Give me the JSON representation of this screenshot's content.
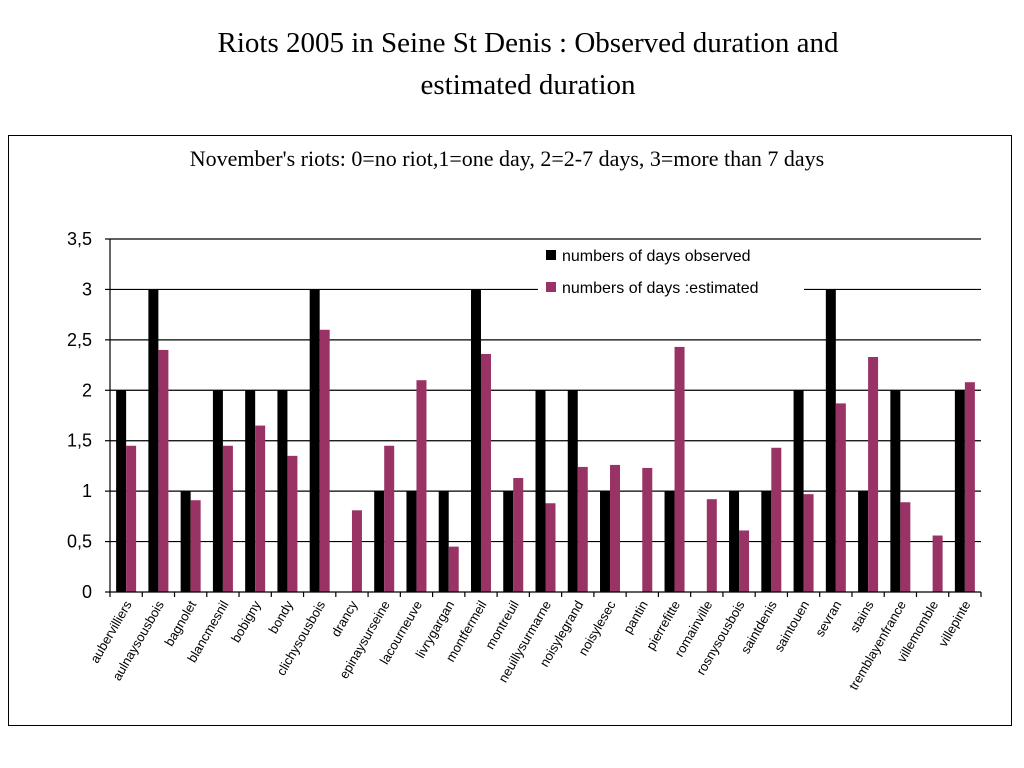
{
  "slide": {
    "title_line1": "Riots 2005 in Seine St Denis : Observed duration  and",
    "title_line2": "estimated duration"
  },
  "chart_data": {
    "type": "bar",
    "title": "November's riots: 0=no riot,1=one day, 2=2-7 days, 3=more than 7 days",
    "xlabel": "",
    "ylabel": "",
    "ylim": [
      0,
      3.5
    ],
    "yticks": [
      "0",
      "0,5",
      "1",
      "1,5",
      "2",
      "2,5",
      "3",
      "3,5"
    ],
    "grid": "horizontal",
    "legend_position": "top-right",
    "categories": [
      "aubervilliers",
      "aulnaysousbois",
      "bagnolet",
      "blancmesnil",
      "bobigny",
      "bondy",
      "clichysousbois",
      "drancy",
      "epinaysurseine",
      "lacourneuve",
      "livrygargan",
      "montfermeil",
      "montreuil",
      "neuillysurmarne",
      "noisylegrand",
      "noisylesec",
      "pantin",
      "pierrefitte",
      "romainville",
      "rosnysousbois",
      "saintdenis",
      "saintouen",
      "sevran",
      "stains",
      "tremblayenfrance",
      "villemomble",
      "villepinte"
    ],
    "series": [
      {
        "name": "numbers of days observed",
        "color": "#000000",
        "values": [
          2,
          3,
          1,
          2,
          2,
          2,
          3,
          0,
          1,
          1,
          1,
          3,
          1,
          2,
          2,
          1,
          0,
          1,
          0,
          1,
          1,
          2,
          3,
          1,
          2,
          0,
          2
        ]
      },
      {
        "name": "numbers of days :estimated",
        "color": "#993366",
        "values": [
          1.45,
          2.4,
          0.91,
          1.45,
          1.65,
          1.35,
          2.6,
          0.81,
          1.45,
          2.1,
          0.45,
          2.36,
          1.13,
          0.88,
          1.24,
          1.26,
          1.23,
          2.43,
          0.92,
          0.61,
          1.43,
          0.97,
          1.87,
          2.33,
          0.89,
          0.56,
          2.08
        ]
      }
    ]
  }
}
